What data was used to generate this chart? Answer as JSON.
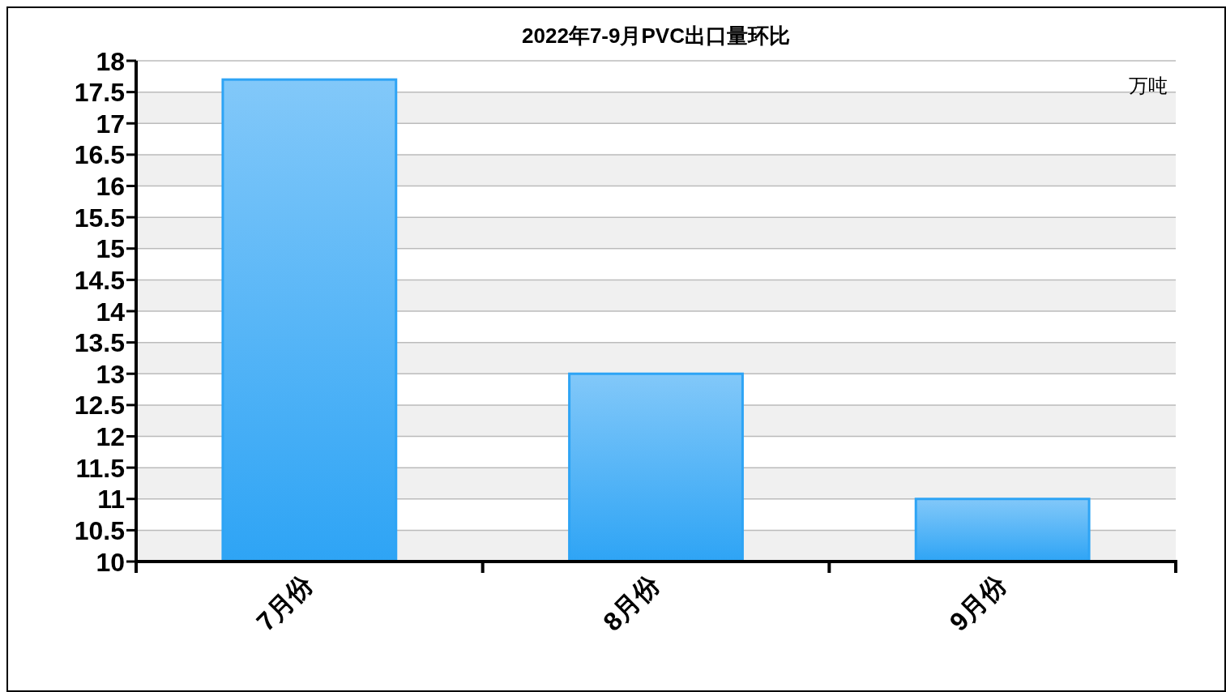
{
  "chart_data": {
    "type": "bar",
    "title": "2022年7-9月PVC出口量环比",
    "ylabel": "万吨",
    "categories": [
      "7月份",
      "8月份",
      "9月份"
    ],
    "values": [
      17.7,
      13.0,
      11.0
    ],
    "color": "#2ea4f5",
    "ylim": [
      10,
      18
    ],
    "yticks": [
      10,
      10.5,
      11,
      11.5,
      12,
      12.5,
      13,
      13.5,
      14,
      14.5,
      15,
      15.5,
      16,
      16.5,
      17,
      17.5,
      18
    ],
    "grid": "y"
  }
}
